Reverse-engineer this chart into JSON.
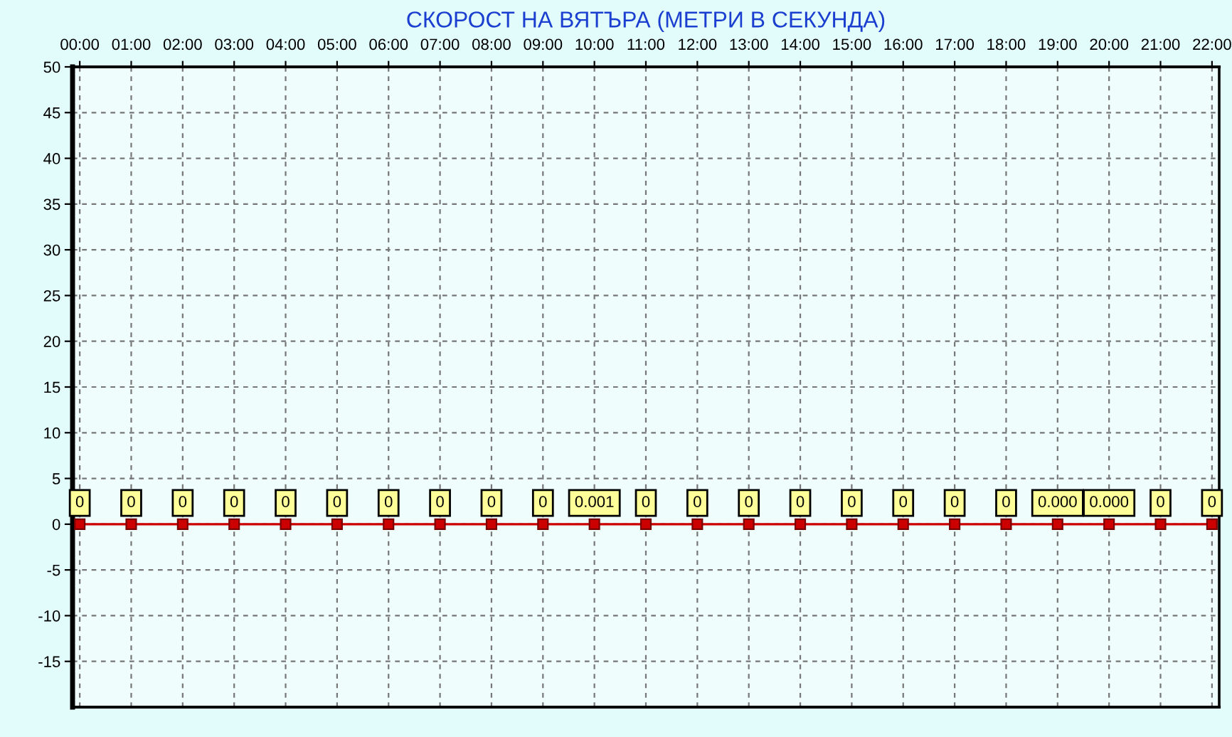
{
  "chart_data": {
    "type": "line",
    "title": "СКОРОСТ НА ВЯТЪРА (МЕТРИ В СЕКУНДА)",
    "categories": [
      "00:00",
      "01:00",
      "02:00",
      "03:00",
      "04:00",
      "05:00",
      "06:00",
      "07:00",
      "08:00",
      "09:00",
      "10:00",
      "11:00",
      "12:00",
      "13:00",
      "14:00",
      "15:00",
      "16:00",
      "17:00",
      "18:00",
      "19:00",
      "20:00",
      "21:00",
      "22:00"
    ],
    "values": [
      0,
      0,
      0,
      0,
      0,
      0,
      0,
      0,
      0,
      0,
      0.001,
      0,
      0,
      0,
      0,
      0,
      0,
      0,
      0,
      0,
      0,
      0,
      0
    ],
    "value_labels": [
      "0",
      "0",
      "0",
      "0",
      "0",
      "0",
      "0",
      "0",
      "0",
      "0",
      "0.001",
      "0",
      "0",
      "0",
      "0",
      "0",
      "0",
      "0",
      "0",
      "0.000",
      "0.000",
      "0",
      "0"
    ],
    "color": "#cc0000",
    "marker": "square",
    "line_style": "solid",
    "ylim": [
      -20,
      50
    ],
    "yticks": [
      -15,
      -10,
      -5,
      0,
      5,
      10,
      15,
      20,
      25,
      30,
      35,
      40,
      45,
      50
    ],
    "grid": true
  }
}
